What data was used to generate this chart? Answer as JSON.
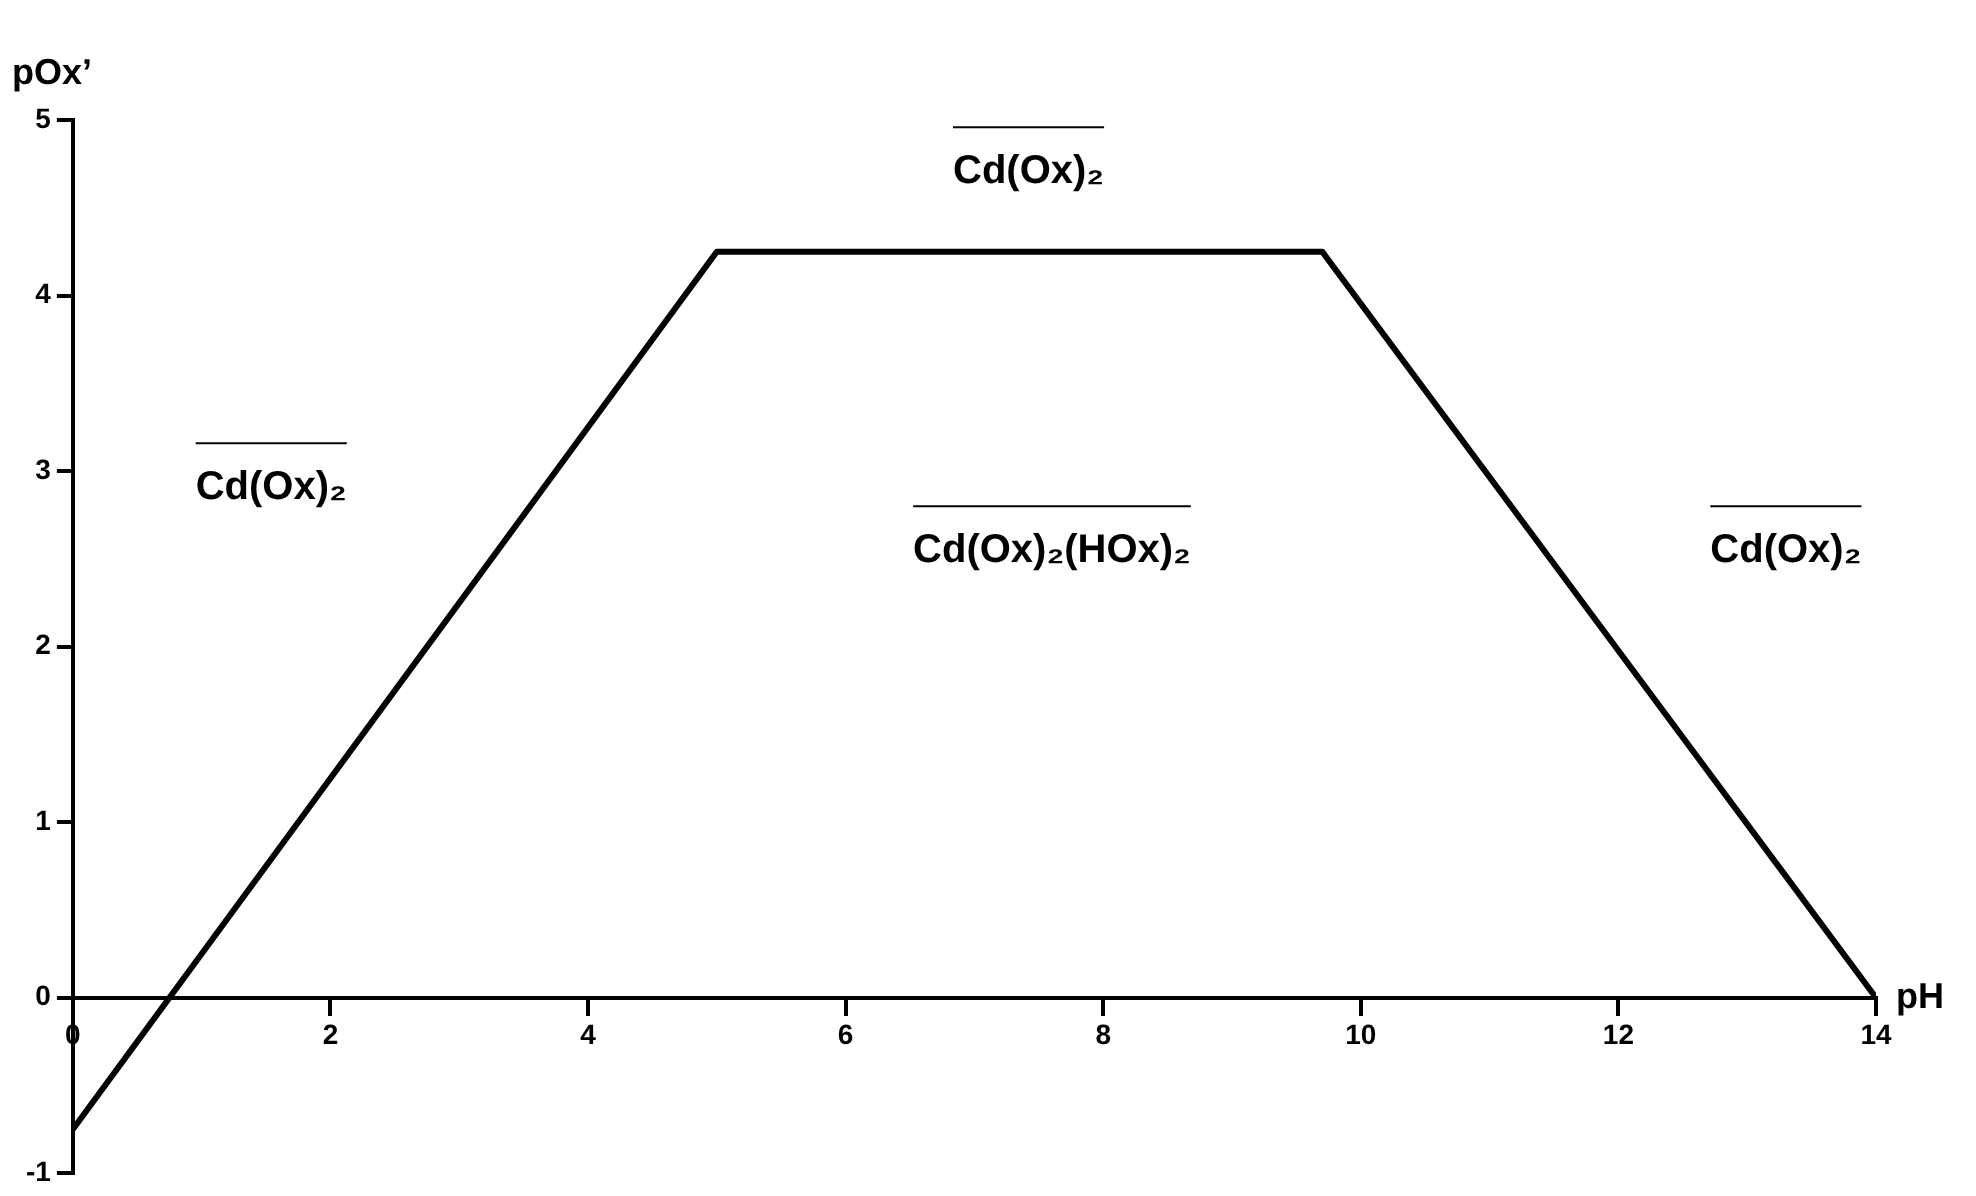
{
  "chart_data": {
    "type": "line",
    "xlabel": "pH",
    "ylabel": "pOx’",
    "series": [
      {
        "color": "#000000",
        "x": [
          0,
          5,
          9.7,
          14
        ],
        "values": [
          -0.75,
          4.25,
          4.25,
          0
        ]
      }
    ],
    "xlim": [
      0,
      14
    ],
    "xticks": [
      0,
      2,
      4,
      6,
      8,
      10,
      12,
      14
    ],
    "ylim": [
      -1,
      5
    ],
    "yticks": [
      -1,
      0,
      1,
      2,
      3,
      4,
      5
    ],
    "grid": false,
    "legend": false,
    "marker": "none",
    "line_style": "solid",
    "annotations": [
      "Cd(Ox)₂",
      "Cd(Ox)₂",
      "Cd(Ox)₂(HOx)₂",
      "Cd(Ox)₂"
    ]
  }
}
